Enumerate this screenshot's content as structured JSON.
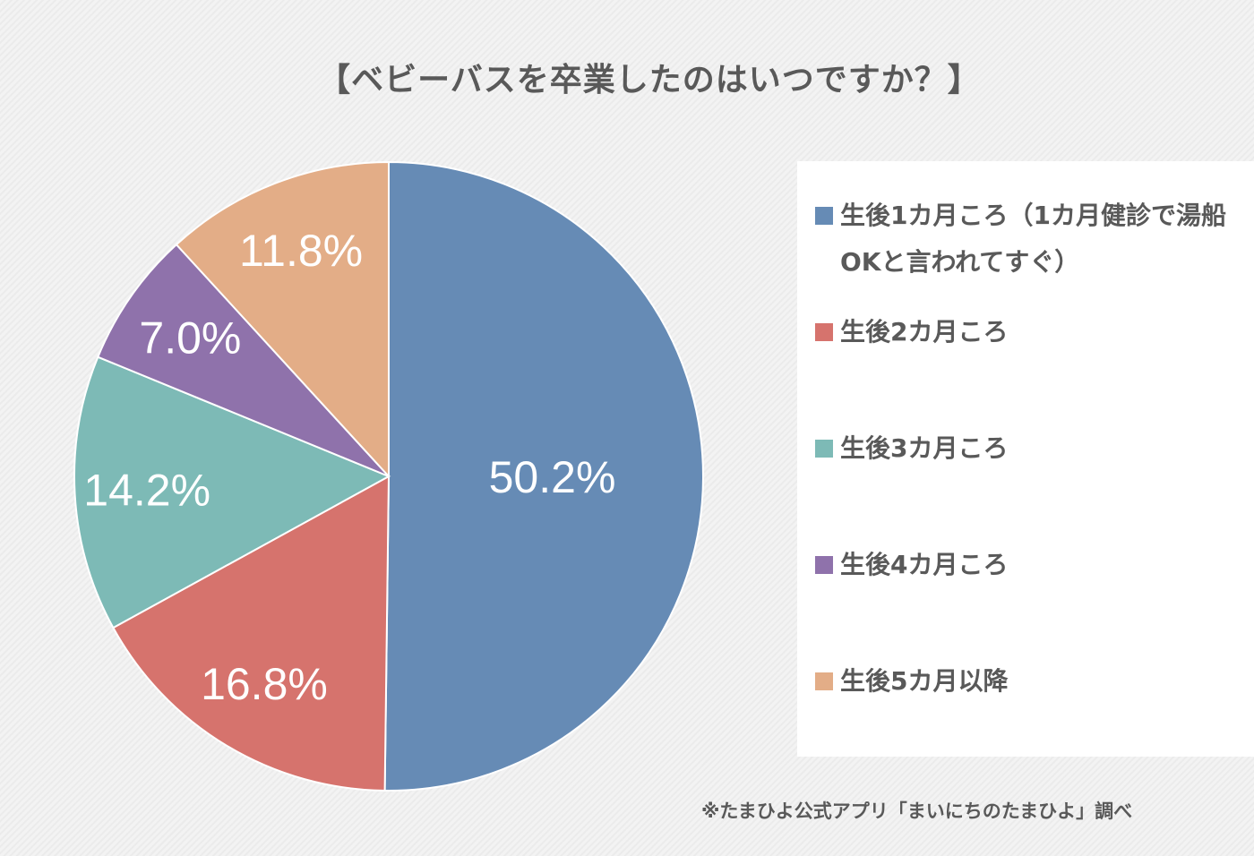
{
  "chart_data": {
    "type": "pie",
    "title": "【ベビーバスを卒業したのはいつですか？】",
    "start": "top",
    "direction": "clockwise",
    "legend_position": "right",
    "slices": [
      {
        "label": "生後1カ月ころ（1カ月健診で湯船OKと言われてすぐ）",
        "value": 50.2,
        "display": "50.2%",
        "color": "#668bb5"
      },
      {
        "label": "生後2カ月ころ",
        "value": 16.8,
        "display": "16.8%",
        "color": "#d6736d"
      },
      {
        "label": "生後3カ月ころ",
        "value": 14.2,
        "display": "14.2%",
        "color": "#7dbab6"
      },
      {
        "label": "生後4カ月ころ",
        "value": 7.0,
        "display": "7.0%",
        "color": "#8f72ab"
      },
      {
        "label": "生後5カ月以降",
        "value": 11.8,
        "display": "11.8%",
        "color": "#e3ad87"
      }
    ]
  },
  "footnote": "※たまひよ公式アプリ「まいにちのたまひよ」調べ"
}
